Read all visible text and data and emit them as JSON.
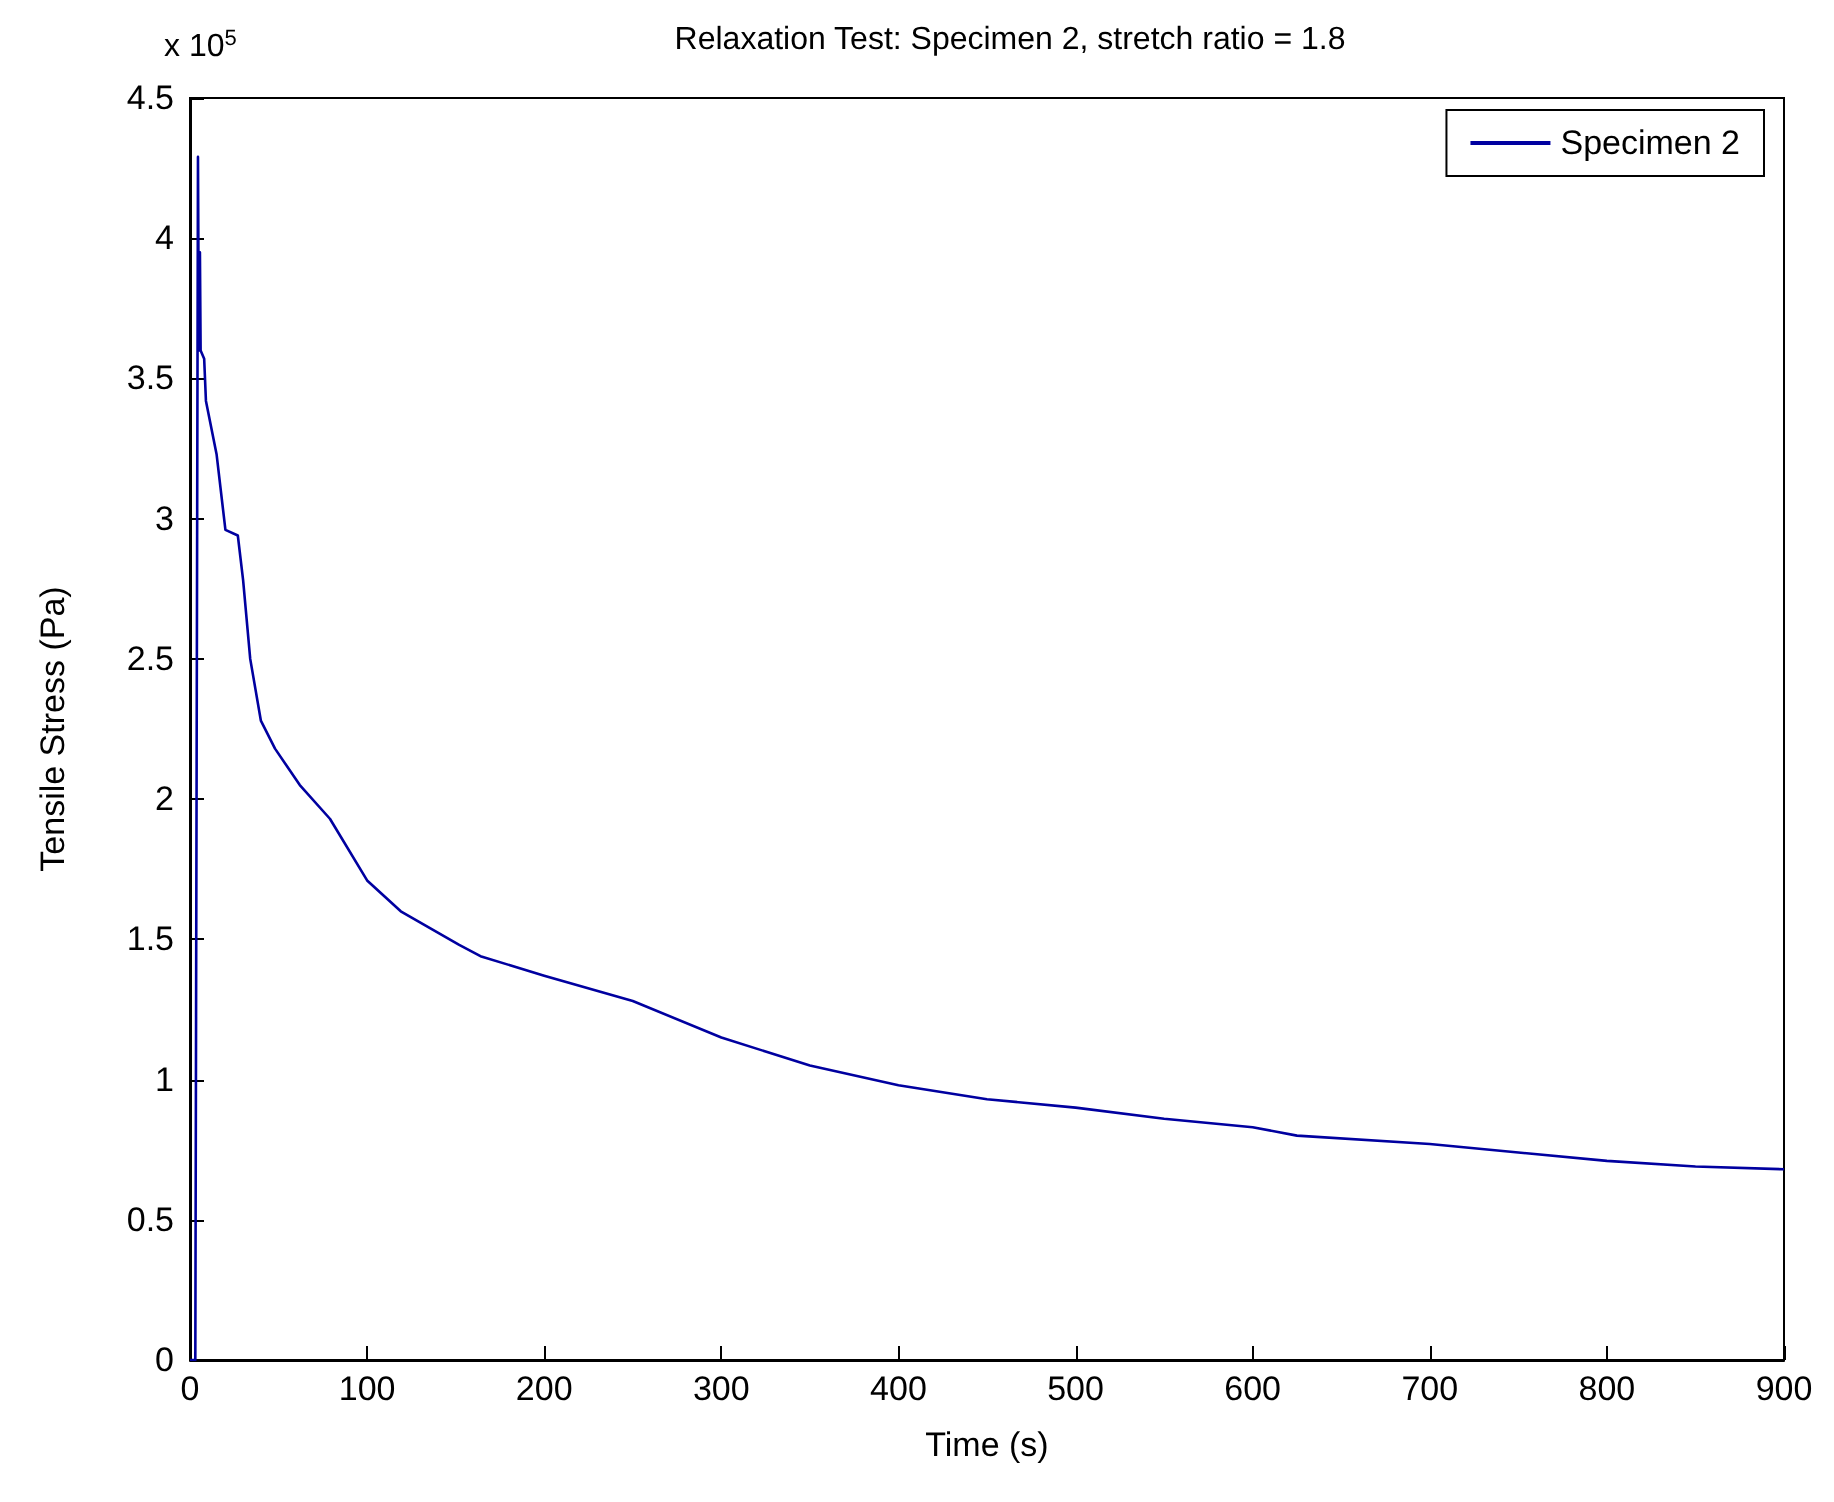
{
  "chart_data": {
    "type": "line",
    "title": "Relaxation Test: Specimen 2, stretch ratio = 1.8",
    "xlabel": "Time (s)",
    "ylabel": "Tensile Stress (Pa)",
    "annotations": [
      "x 10$^{5}$"
    ],
    "series": [
      {
        "name": "Specimen 2",
        "color": "#0000a0",
        "x": [
          0,
          3,
          4.5,
          5,
          5.6,
          6,
          8,
          9,
          15,
          20,
          27,
          30,
          34,
          40,
          48,
          62,
          79,
          100,
          119,
          152,
          164,
          200,
          250,
          300,
          350,
          400,
          450,
          500,
          550,
          600,
          625,
          700,
          750,
          800,
          850,
          900
        ],
        "values": [
          0,
          0,
          4.29,
          3.6,
          3.95,
          3.6,
          3.57,
          3.42,
          3.23,
          2.96,
          2.94,
          2.78,
          2.5,
          2.28,
          2.18,
          2.05,
          1.93,
          1.71,
          1.6,
          1.48,
          1.44,
          1.37,
          1.28,
          1.15,
          1.05,
          0.98,
          0.93,
          0.9,
          0.86,
          0.83,
          0.8,
          0.77,
          0.74,
          0.71,
          0.69,
          0.68
        ]
      }
    ],
    "xlim": [
      0,
      900
    ],
    "xticks": [
      0,
      100,
      200,
      300,
      400,
      500,
      600,
      700,
      800,
      900
    ],
    "ylim": [
      0,
      4.5
    ],
    "yticks": [
      0,
      0.5,
      1,
      1.5,
      2,
      2.5,
      3,
      3.5,
      4,
      4.5
    ],
    "grid": false,
    "legend": "top right",
    "marker": "none",
    "line_style": "solid"
  }
}
